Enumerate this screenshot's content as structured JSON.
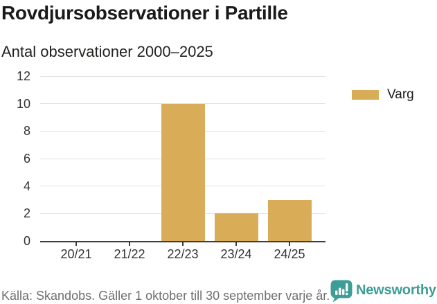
{
  "header": {
    "title": "Rovdjursobservationer i Partille",
    "subtitle": "Antal observationer 2000–2025"
  },
  "legend": {
    "items": [
      {
        "label": "Varg",
        "color": "#d9ac57"
      }
    ]
  },
  "chart_data": {
    "type": "bar",
    "categories": [
      "20/21",
      "21/22",
      "22/23",
      "23/24",
      "24/25"
    ],
    "series": [
      {
        "name": "Varg",
        "values": [
          0,
          0,
          10,
          2,
          3
        ],
        "color": "#d9ac57"
      }
    ],
    "title": "Rovdjursobservationer i Partille",
    "subtitle": "Antal observationer 2000–2025",
    "xlabel": "",
    "ylabel": "",
    "ylim": [
      0,
      12
    ],
    "yticks": [
      0,
      2,
      4,
      6,
      8,
      10,
      12
    ],
    "grid": true,
    "legend_position": "right"
  },
  "footer": {
    "source": "Källa: Skandobs. Gäller 1 oktober till 30 september varje år.",
    "brand": "Newsworthy",
    "brand_color": "#3c9e96"
  },
  "colors": {
    "bar": "#d9ac57",
    "grid": "#e3e3e3",
    "axis": "#3e3e3e",
    "axis_text": "#333333",
    "muted_text": "#6d6f70"
  }
}
